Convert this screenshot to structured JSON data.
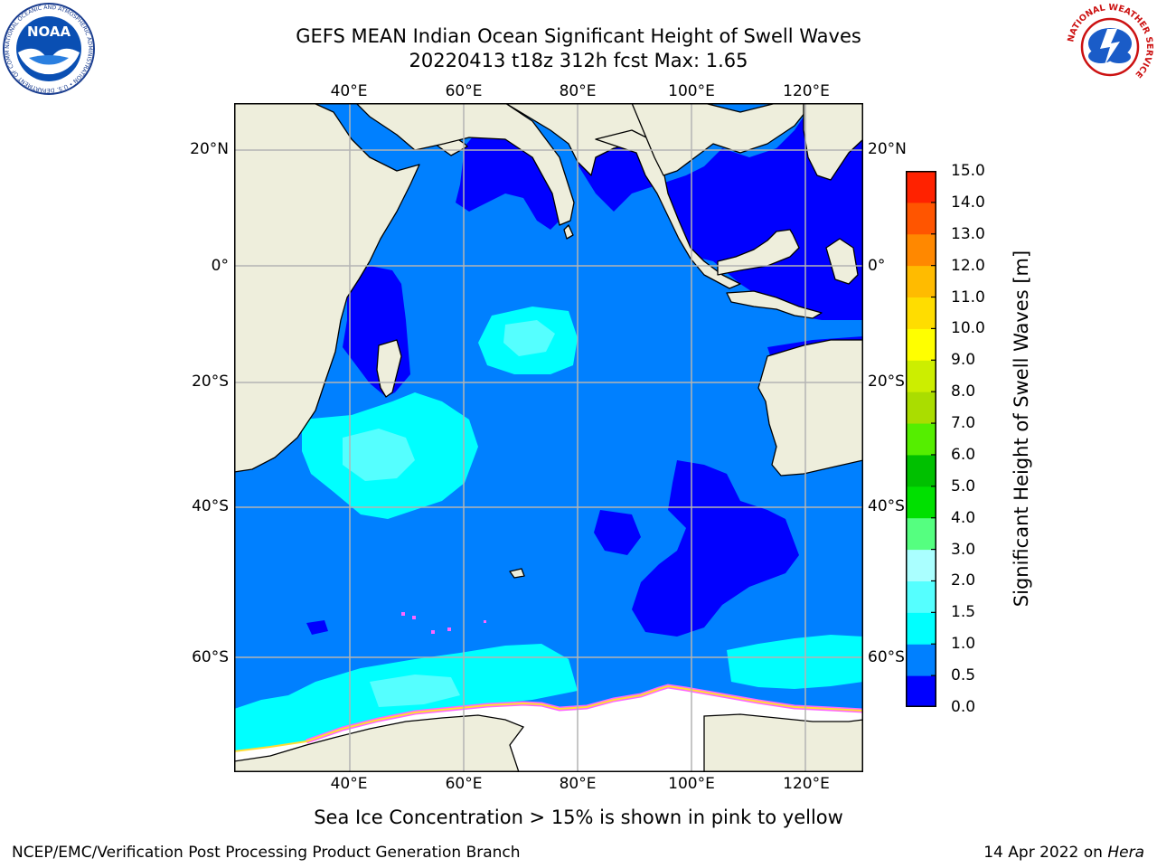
{
  "title": {
    "line1": "GEFS MEAN Indian Ocean Significant Height of Swell Waves",
    "line2": "20220413 t18z 312h fcst   Max: 1.65"
  },
  "logos": {
    "noaa": {
      "text": "NOAA",
      "ring": "NATIONAL OCEANIC AND ATMOSPHERIC ADMINISTRATION • U.S. DEPARTMENT OF COMMERCE"
    },
    "nws": {
      "ring": "NATIONAL WEATHER SERVICE"
    }
  },
  "map": {
    "lon_ticks": [
      "40°E",
      "60°E",
      "80°E",
      "100°E",
      "120°E"
    ],
    "lat_ticks_left": [
      "20°N",
      "0°",
      "20°S",
      "40°S",
      "60°S"
    ],
    "lat_ticks_right": [
      "20°N",
      "0°",
      "20°S",
      "40°S",
      "60°S"
    ],
    "colors": {
      "land": "#eeeedc",
      "ocean_base": "#0080ff",
      "calm": "#0000ff",
      "swell_1_1_5": "#00ffff",
      "swell_1_5_2": "#55ffff",
      "sea_ice": "#ff66ff",
      "ice_yellow": "#ffdd33",
      "antarctic_ice": "#ffffff",
      "grid": "#b4b4b4"
    }
  },
  "colorbar": {
    "label": "Significant Height of Swell Waves [m]",
    "ticks": [
      "0.0",
      "0.5",
      "1.0",
      "1.5",
      "2.0",
      "3.0",
      "4.0",
      "5.0",
      "6.0",
      "7.0",
      "8.0",
      "9.0",
      "10.0",
      "11.0",
      "12.0",
      "13.0",
      "14.0",
      "15.0"
    ],
    "colors": [
      "#0000ff",
      "#0080ff",
      "#00ffff",
      "#55ffff",
      "#aaffff",
      "#55ff80",
      "#00e000",
      "#00c000",
      "#55ee00",
      "#aadd00",
      "#ccee00",
      "#ffff00",
      "#ffdd00",
      "#ffbb00",
      "#ff8800",
      "#ff5500",
      "#ff2200"
    ]
  },
  "caption": "Sea Ice Concentration > 15% is shown in pink to yellow",
  "footer": {
    "left": "NCEP/EMC/Verification Post Processing Product Generation Branch",
    "date": "14 Apr 2022 on",
    "host": "Hera"
  }
}
